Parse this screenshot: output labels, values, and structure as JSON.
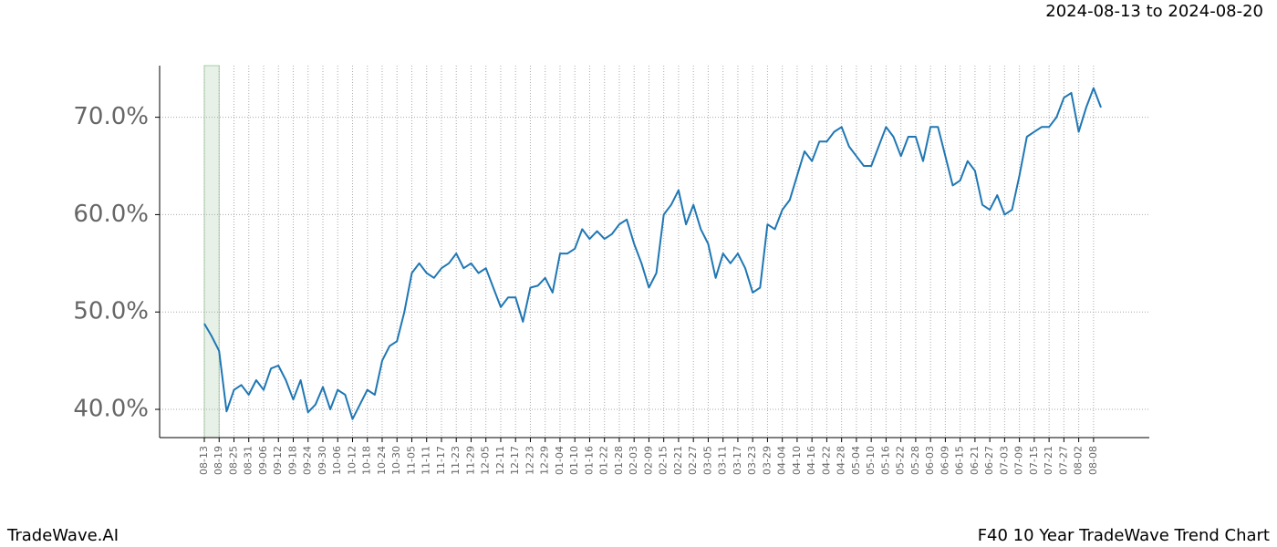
{
  "chart_data": {
    "type": "line",
    "subtitle": "2024-08-13 to 2024-08-20",
    "footer_left": "TradeWave.AI",
    "footer_right": "F40 10 Year TradeWave Trend Chart",
    "categories": [
      "08-13",
      null,
      "08-19",
      null,
      "08-25",
      null,
      "08-31",
      null,
      "09-06",
      null,
      "09-12",
      null,
      "09-18",
      null,
      "09-24",
      null,
      "09-30",
      null,
      "10-06",
      null,
      "10-12",
      null,
      "10-18",
      null,
      "10-24",
      null,
      "10-30",
      null,
      "11-05",
      null,
      "11-11",
      null,
      "11-17",
      null,
      "11-23",
      null,
      "11-29",
      null,
      "12-05",
      null,
      "12-11",
      null,
      "12-17",
      null,
      "12-23",
      null,
      "12-29",
      null,
      "01-04",
      null,
      "01-10",
      null,
      "01-16",
      null,
      "01-22",
      null,
      "01-28",
      null,
      "02-03",
      null,
      "02-09",
      null,
      "02-15",
      null,
      "02-21",
      null,
      "02-27",
      null,
      "03-05",
      null,
      "03-11",
      null,
      "03-17",
      null,
      "03-23",
      null,
      "03-29",
      null,
      "04-04",
      null,
      "04-10",
      null,
      "04-16",
      null,
      "04-22",
      null,
      "04-28",
      null,
      "05-04",
      null,
      "05-10",
      null,
      "05-16",
      null,
      "05-22",
      null,
      "05-28",
      null,
      "06-03",
      null,
      "06-09",
      null,
      "06-15",
      null,
      "06-21",
      null,
      "06-27",
      null,
      "07-03",
      null,
      "07-09",
      null,
      "07-15",
      null,
      "07-21",
      null,
      "07-27",
      null,
      "08-02",
      null,
      "08-08",
      null
    ],
    "series": [
      {
        "color": "#1f77b4",
        "values": [
          48.8,
          47.5,
          46,
          39.8,
          42,
          42.5,
          41.5,
          43,
          42,
          44.2,
          44.5,
          43,
          41,
          43,
          39.7,
          40.5,
          42.3,
          40,
          42,
          41.5,
          39,
          40.5,
          42,
          41.5,
          45,
          46.5,
          47,
          50,
          54,
          55,
          54,
          53.5,
          54.5,
          55,
          56,
          54.5,
          55,
          54,
          54.5,
          52.5,
          50.5,
          51.5,
          51.5,
          49,
          52.5,
          52.7,
          53.5,
          52,
          56,
          56,
          56.5,
          58.5,
          57.5,
          58.3,
          57.5,
          58,
          59,
          59.5,
          57,
          55,
          52.5,
          54,
          60,
          61,
          62.5,
          59,
          61,
          58.5,
          57,
          53.5,
          56,
          55,
          56,
          54.5,
          52,
          52.5,
          59,
          58.5,
          60.5,
          61.5,
          64,
          66.5,
          65.5,
          67.5,
          67.5,
          68.5,
          69,
          67,
          66,
          65,
          65,
          67,
          69,
          68,
          66,
          68,
          68,
          65.5,
          69,
          69,
          66,
          63,
          63.5,
          65.5,
          64.5,
          61,
          60.5,
          62,
          60,
          60.5,
          64,
          68,
          68.5,
          69,
          69,
          70,
          72,
          72.5,
          68.5,
          71,
          73,
          71
        ]
      }
    ],
    "highlight": [
      "08-13",
      "08-19"
    ],
    "highlight_color": "#e6f0e6",
    "ylim": [
      37.1,
      75.3
    ],
    "yticks": [
      {
        "value": 40,
        "label": "40.0%"
      },
      {
        "value": 50,
        "label": "50.0%"
      },
      {
        "value": 60,
        "label": "60.0%"
      },
      {
        "value": 70,
        "label": "70.0%"
      }
    ],
    "grid": true
  }
}
